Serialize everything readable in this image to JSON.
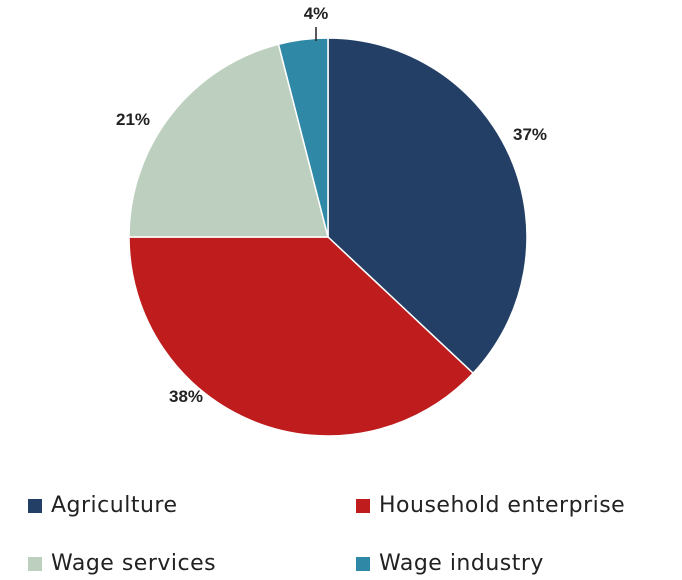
{
  "chart_data": {
    "type": "pie",
    "start_angle": "top",
    "direction": "clockwise",
    "slices": [
      {
        "name": "Agriculture",
        "value": 37,
        "label": "37%",
        "color": "#243f66"
      },
      {
        "name": "Household enterprise",
        "value": 38,
        "label": "38%",
        "color": "#bf1d1d"
      },
      {
        "name": "Wage services",
        "value": 21,
        "label": "21%",
        "color": "#bdd0bf"
      },
      {
        "name": "Wage industry",
        "value": 4,
        "label": "4%",
        "color": "#2f88a6"
      }
    ],
    "legend_position": "bottom"
  }
}
